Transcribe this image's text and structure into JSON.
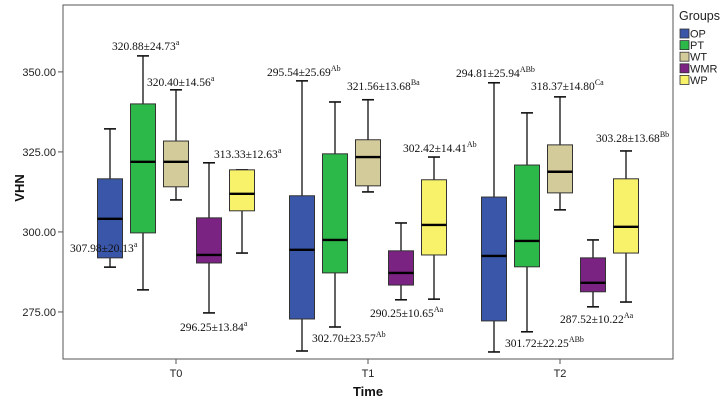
{
  "chart_data": {
    "type": "boxplot",
    "title": "",
    "xlabel": "Time",
    "ylabel": "VHN",
    "ylim": [
      260.3,
      370.9
    ],
    "yticks": [
      "275.00",
      "300.00",
      "325.00",
      "350.00"
    ],
    "ytick_values": [
      275,
      300,
      325,
      350
    ],
    "categories": [
      "T0",
      "T1",
      "T2"
    ],
    "grid": false,
    "legend": {
      "title": "Groups",
      "placement": "right"
    },
    "series": [
      {
        "name": "OP",
        "color": "#3a56a8",
        "boxes": [
          {
            "whisker_high": 332.2,
            "q3": 316.6,
            "median": 304.1,
            "q1": 291.9,
            "whisker_low": 289.0
          },
          {
            "whisker_high": 347.2,
            "q3": 311.3,
            "median": 294.4,
            "q1": 272.8,
            "whisker_low": 262.8
          },
          {
            "whisker_high": 346.6,
            "q3": 310.9,
            "median": 292.5,
            "q1": 272.2,
            "whisker_low": 262.5
          }
        ]
      },
      {
        "name": "PT",
        "color": "#2db84a",
        "boxes": [
          {
            "whisker_high": 355.0,
            "q3": 340.0,
            "median": 321.9,
            "q1": 299.7,
            "whisker_low": 281.9
          },
          {
            "whisker_high": 340.6,
            "q3": 324.4,
            "median": 297.5,
            "q1": 287.2,
            "whisker_low": 270.3
          },
          {
            "whisker_high": 337.2,
            "q3": 320.9,
            "median": 297.2,
            "q1": 289.1,
            "whisker_low": 268.8
          }
        ]
      },
      {
        "name": "WT",
        "color": "#d4cb9a",
        "boxes": [
          {
            "whisker_high": 344.4,
            "q3": 328.4,
            "median": 321.9,
            "q1": 314.1,
            "whisker_low": 310.0
          },
          {
            "whisker_high": 341.3,
            "q3": 328.8,
            "median": 323.4,
            "q1": 314.4,
            "whisker_low": 312.5
          },
          {
            "whisker_high": 342.2,
            "q3": 327.2,
            "median": 318.8,
            "q1": 312.2,
            "whisker_low": 306.9
          }
        ]
      },
      {
        "name": "WMR",
        "color": "#7a2382",
        "boxes": [
          {
            "whisker_high": 321.6,
            "q3": 304.4,
            "median": 292.8,
            "q1": 290.3,
            "whisker_low": 274.7
          },
          {
            "whisker_high": 302.8,
            "q3": 294.1,
            "median": 287.2,
            "q1": 283.4,
            "whisker_low": 278.8
          },
          {
            "whisker_high": 297.5,
            "q3": 291.9,
            "median": 284.1,
            "q1": 281.3,
            "whisker_low": 276.6
          }
        ]
      },
      {
        "name": "WP",
        "color": "#f7f26a",
        "boxes": [
          {
            "whisker_high": 319.4,
            "q3": 319.4,
            "median": 311.9,
            "q1": 306.6,
            "whisker_low": 293.4
          },
          {
            "whisker_high": 323.4,
            "q3": 316.3,
            "median": 302.2,
            "q1": 292.8,
            "whisker_low": 279.0
          },
          {
            "whisker_high": 325.3,
            "q3": 316.6,
            "median": 301.6,
            "q1": 293.4,
            "whisker_low": 278.1
          }
        ]
      }
    ],
    "annotations": [
      {
        "text": "307.98±20.13",
        "sup": "a"
      },
      {
        "text": "320.88±24.73",
        "sup": "a"
      },
      {
        "text": "320.40±14.56",
        "sup": "a"
      },
      {
        "text": "296.25±13.84",
        "sup": "a"
      },
      {
        "text": "313.33±12.63",
        "sup": "a"
      },
      {
        "text": "295.54±25.69",
        "sup": "Ab"
      },
      {
        "text": "302.70±23.57",
        "sup": "Ab"
      },
      {
        "text": "321.56±13.68",
        "sup": "Ba"
      },
      {
        "text": "290.25±10.65",
        "sup": "Aa"
      },
      {
        "text": "302.42±14.41",
        "sup": "Ab"
      },
      {
        "text": "294.81±25.94",
        "sup": "ABb"
      },
      {
        "text": "301.72±22.25",
        "sup": "ABb"
      },
      {
        "text": "318.37±14.80",
        "sup": "Ca"
      },
      {
        "text": "287.52±10.22",
        "sup": "Aa"
      },
      {
        "text": "303.28±13.68",
        "sup": "Bb"
      }
    ]
  }
}
